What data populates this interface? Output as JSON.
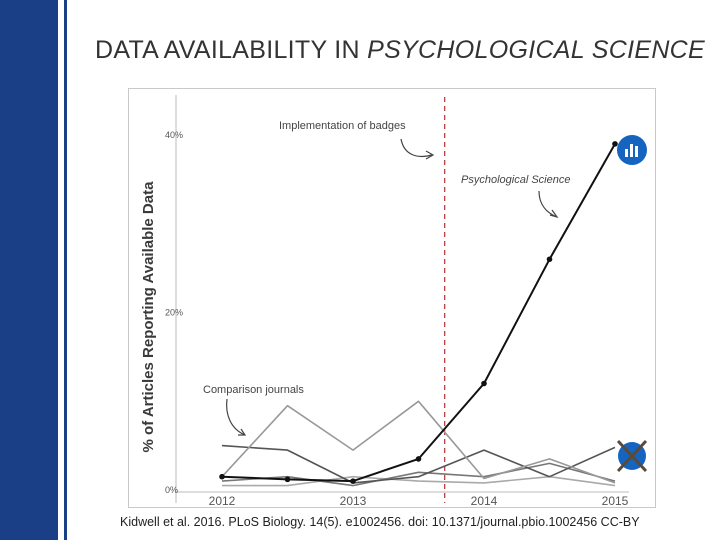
{
  "slide": {
    "title_part1": "DATA AVAILABILITY IN",
    "title_part2": "PSYCHOLOGICAL SCIENCE",
    "citation": "Kidwell et al. 2016. PLoS Biology. 14(5). e1002456. doi: 10.1371/journal.pbio.1002456 CC-BY"
  },
  "chart_data": {
    "type": "line",
    "ylabel": "% of Articles Reporting Available Data",
    "ylim": [
      0,
      40
    ],
    "yticks": [
      "0%",
      "20%",
      "40%"
    ],
    "xlim": [
      2012,
      2015
    ],
    "xticks": [
      "2012",
      "2013",
      "2014",
      "2015"
    ],
    "event_line_x": 2013.7,
    "series": [
      {
        "name": "Psychological Science",
        "color": "#111111",
        "markers": true,
        "x": [
          2012,
          2012.5,
          2013,
          2013.5,
          2014,
          2014.5,
          2015
        ],
        "y": [
          1.5,
          1.2,
          1,
          3.5,
          12,
          26,
          39
        ]
      },
      {
        "color": "#999999",
        "x": [
          2012,
          2012.5,
          2013,
          2013.5,
          2014,
          2014.5,
          2015
        ],
        "y": [
          1.5,
          9.5,
          4.5,
          10,
          1.3,
          3.5,
          0.8
        ]
      },
      {
        "color": "#555555",
        "x": [
          2012,
          2012.5,
          2013,
          2013.5,
          2014,
          2014.5,
          2015
        ],
        "y": [
          5,
          4.5,
          0.8,
          1.5,
          4.5,
          1.5,
          4.8
        ]
      },
      {
        "color": "#777777",
        "x": [
          2012,
          2012.5,
          2013,
          2013.5,
          2014,
          2014.5,
          2015
        ],
        "y": [
          1,
          1.5,
          0.5,
          2,
          1.5,
          3,
          1
        ]
      },
      {
        "color": "#aaaaaa",
        "x": [
          2012,
          2012.5,
          2013,
          2013.5,
          2014,
          2014.5,
          2015
        ],
        "y": [
          0.5,
          0.5,
          1.5,
          1,
          0.8,
          1.5,
          0.5
        ]
      }
    ],
    "annotations": [
      {
        "label": "Implementation of badges"
      },
      {
        "label": "Psychological Science"
      },
      {
        "label": "Comparison journals"
      }
    ],
    "icons": [
      {
        "name": "open-data-badge-icon",
        "color": "#1565c0"
      },
      {
        "name": "no-badge-icon",
        "color": "#1565c0",
        "cross_color": "#5a4a3a"
      }
    ]
  }
}
